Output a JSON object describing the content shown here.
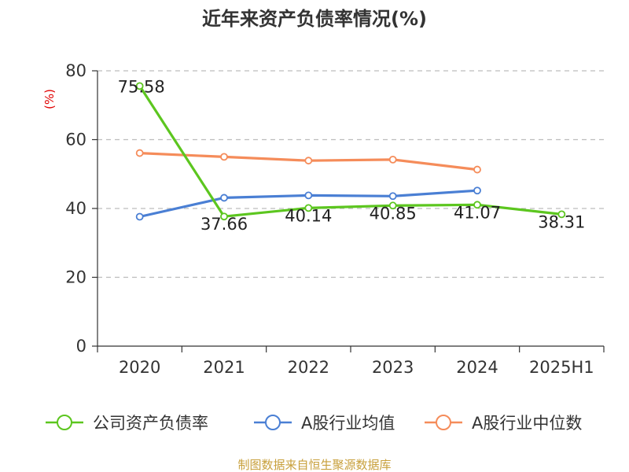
{
  "chart_data": {
    "type": "line",
    "title": "近年来资产负债率情况(%)",
    "ylabel": "(%)",
    "xlabel": "",
    "categories": [
      "2020",
      "2021",
      "2022",
      "2023",
      "2024",
      "2025H1"
    ],
    "ylim": [
      0,
      80
    ],
    "yticks": [
      0,
      20,
      40,
      60,
      80
    ],
    "grid": true,
    "legend_position": "bottom",
    "series": [
      {
        "name": "公司资产负债率",
        "color": "#5cc61f",
        "values": [
          75.58,
          37.66,
          40.14,
          40.85,
          41.07,
          38.31
        ],
        "data_labels": [
          "75.58",
          "37.66",
          "40.14",
          "40.85",
          "41.07",
          "38.31"
        ]
      },
      {
        "name": "A股行业均值",
        "color": "#4a7fd4",
        "values": [
          37.6,
          43.1,
          43.8,
          43.6,
          45.2,
          null
        ]
      },
      {
        "name": "A股行业中位数",
        "color": "#f58c5a",
        "values": [
          56.1,
          55.0,
          53.9,
          54.2,
          51.3,
          null
        ]
      }
    ]
  },
  "source": "制图数据来自恒生聚源数据库"
}
